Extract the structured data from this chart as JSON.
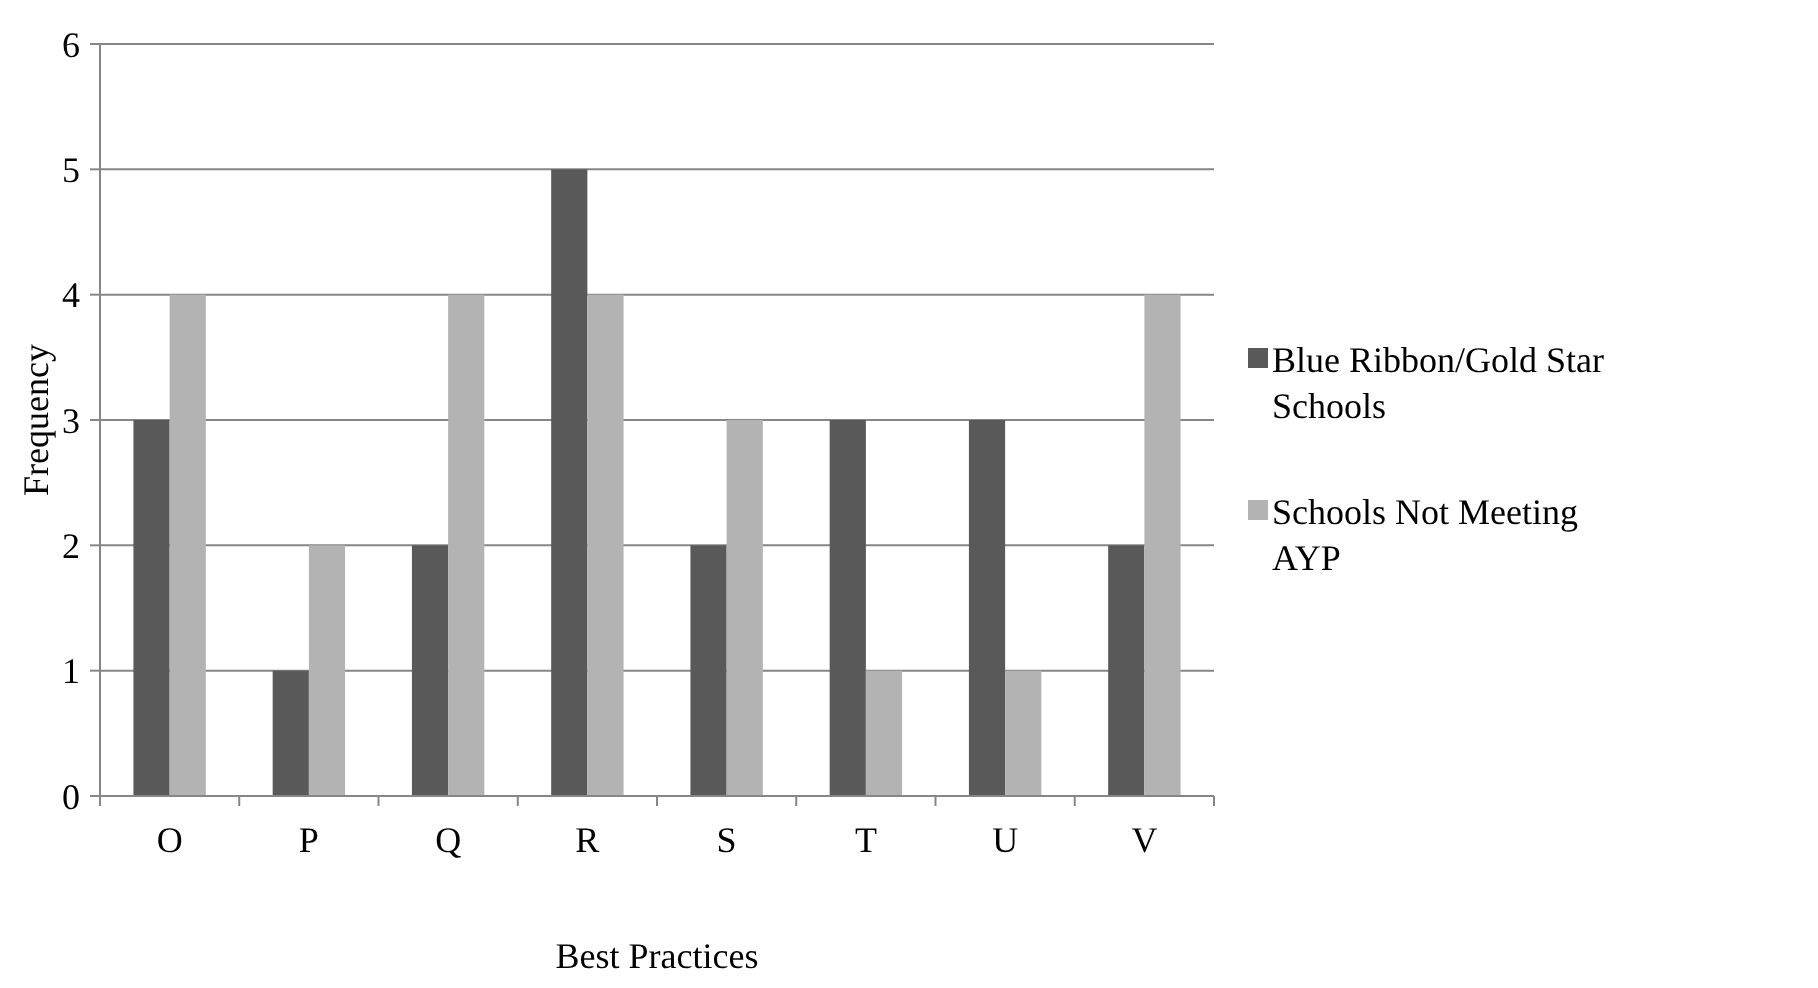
{
  "chart_data": {
    "type": "bar",
    "xlabel": "Best Practices",
    "ylabel": "Frequency",
    "categories": [
      "O",
      "P",
      "Q",
      "R",
      "S",
      "T",
      "U",
      "V"
    ],
    "series": [
      {
        "name": "Blue Ribbon/Gold Star Schools",
        "color": "#595959",
        "values": [
          3,
          1,
          2,
          5,
          2,
          3,
          3,
          2
        ]
      },
      {
        "name": "Schools Not Meeting AYP",
        "color": "#b3b3b3",
        "values": [
          4,
          2,
          4,
          4,
          3,
          1,
          1,
          4
        ]
      }
    ],
    "ylim": [
      0,
      6
    ],
    "yticks": [
      0,
      1,
      2,
      3,
      4,
      5,
      6
    ],
    "grid": "y",
    "legend": "right"
  }
}
